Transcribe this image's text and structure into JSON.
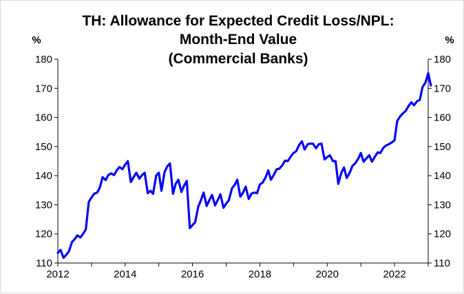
{
  "chart_data": {
    "type": "line",
    "title_lines": [
      "TH: Allowance for Expected Credit Loss/NPL:",
      "Month-End Value",
      "(Commercial Banks)"
    ],
    "ylabel_left": "%",
    "ylabel_right": "%",
    "ylim": [
      110,
      180
    ],
    "yticks": [
      110,
      120,
      130,
      140,
      150,
      160,
      170,
      180
    ],
    "xlim": [
      2012,
      2023.0
    ],
    "xticks": [
      2012,
      2014,
      2016,
      2018,
      2020,
      2022
    ],
    "grid": false,
    "legend": "none",
    "series": [
      {
        "color": "#0000ff",
        "points": [
          [
            2012.0,
            113.5
          ],
          [
            2012.08,
            114.5
          ],
          [
            2012.17,
            111.8
          ],
          [
            2012.25,
            112.8
          ],
          [
            2012.33,
            114.0
          ],
          [
            2012.42,
            117.2
          ],
          [
            2012.5,
            118.2
          ],
          [
            2012.58,
            119.5
          ],
          [
            2012.67,
            118.8
          ],
          [
            2012.75,
            120.0
          ],
          [
            2012.83,
            121.5
          ],
          [
            2012.92,
            131.0
          ],
          [
            2013.0,
            132.5
          ],
          [
            2013.08,
            133.8
          ],
          [
            2013.17,
            134.2
          ],
          [
            2013.25,
            136.0
          ],
          [
            2013.33,
            139.5
          ],
          [
            2013.42,
            138.5
          ],
          [
            2013.5,
            140.2
          ],
          [
            2013.58,
            140.8
          ],
          [
            2013.67,
            140.2
          ],
          [
            2013.75,
            141.8
          ],
          [
            2013.83,
            143.0
          ],
          [
            2013.92,
            142.2
          ],
          [
            2014.0,
            143.8
          ],
          [
            2014.08,
            145.0
          ],
          [
            2014.17,
            137.8
          ],
          [
            2014.25,
            139.5
          ],
          [
            2014.33,
            141.0
          ],
          [
            2014.42,
            139.0
          ],
          [
            2014.5,
            140.2
          ],
          [
            2014.58,
            141.0
          ],
          [
            2014.67,
            134.0
          ],
          [
            2014.75,
            134.8
          ],
          [
            2014.83,
            133.8
          ],
          [
            2014.92,
            140.0
          ],
          [
            2015.0,
            141.0
          ],
          [
            2015.08,
            134.8
          ],
          [
            2015.17,
            141.2
          ],
          [
            2015.25,
            143.2
          ],
          [
            2015.33,
            144.2
          ],
          [
            2015.42,
            133.8
          ],
          [
            2015.5,
            137.2
          ],
          [
            2015.58,
            138.6
          ],
          [
            2015.67,
            134.4
          ],
          [
            2015.75,
            136.6
          ],
          [
            2015.83,
            138.2
          ],
          [
            2015.92,
            122.0
          ],
          [
            2016.0,
            123.0
          ],
          [
            2016.08,
            124.0
          ],
          [
            2016.17,
            129.4
          ],
          [
            2016.25,
            131.6
          ],
          [
            2016.33,
            134.2
          ],
          [
            2016.42,
            129.6
          ],
          [
            2016.5,
            131.6
          ],
          [
            2016.58,
            133.4
          ],
          [
            2016.67,
            129.8
          ],
          [
            2016.75,
            131.6
          ],
          [
            2016.83,
            133.6
          ],
          [
            2016.92,
            129.0
          ],
          [
            2017.0,
            130.4
          ],
          [
            2017.08,
            131.6
          ],
          [
            2017.17,
            135.6
          ],
          [
            2017.25,
            136.8
          ],
          [
            2017.33,
            138.6
          ],
          [
            2017.42,
            132.8
          ],
          [
            2017.5,
            134.2
          ],
          [
            2017.58,
            136.2
          ],
          [
            2017.67,
            132.0
          ],
          [
            2017.75,
            133.8
          ],
          [
            2017.83,
            134.2
          ],
          [
            2017.92,
            134.0
          ],
          [
            2018.0,
            137.0
          ],
          [
            2018.08,
            137.6
          ],
          [
            2018.17,
            139.4
          ],
          [
            2018.25,
            141.8
          ],
          [
            2018.33,
            138.6
          ],
          [
            2018.42,
            140.4
          ],
          [
            2018.5,
            142.2
          ],
          [
            2018.58,
            142.4
          ],
          [
            2018.67,
            143.6
          ],
          [
            2018.75,
            145.2
          ],
          [
            2018.83,
            145.0
          ],
          [
            2018.92,
            146.6
          ],
          [
            2019.0,
            147.8
          ],
          [
            2019.08,
            148.4
          ],
          [
            2019.17,
            150.6
          ],
          [
            2019.25,
            151.8
          ],
          [
            2019.33,
            149.0
          ],
          [
            2019.42,
            150.8
          ],
          [
            2019.5,
            151.0
          ],
          [
            2019.58,
            151.0
          ],
          [
            2019.67,
            149.4
          ],
          [
            2019.75,
            150.8
          ],
          [
            2019.83,
            151.0
          ],
          [
            2019.92,
            145.6
          ],
          [
            2020.0,
            146.4
          ],
          [
            2020.08,
            147.0
          ],
          [
            2020.17,
            145.0
          ],
          [
            2020.25,
            145.0
          ],
          [
            2020.33,
            137.2
          ],
          [
            2020.42,
            141.0
          ],
          [
            2020.5,
            142.8
          ],
          [
            2020.58,
            139.2
          ],
          [
            2020.67,
            141.0
          ],
          [
            2020.75,
            143.4
          ],
          [
            2020.83,
            144.2
          ],
          [
            2020.92,
            145.8
          ],
          [
            2021.0,
            147.8
          ],
          [
            2021.08,
            144.8
          ],
          [
            2021.17,
            146.0
          ],
          [
            2021.25,
            147.0
          ],
          [
            2021.33,
            144.8
          ],
          [
            2021.42,
            146.6
          ],
          [
            2021.5,
            148.0
          ],
          [
            2021.58,
            147.8
          ],
          [
            2021.67,
            149.6
          ],
          [
            2021.75,
            150.4
          ],
          [
            2021.83,
            150.8
          ],
          [
            2021.92,
            151.4
          ],
          [
            2022.0,
            152.2
          ],
          [
            2022.08,
            158.8
          ],
          [
            2022.17,
            160.4
          ],
          [
            2022.25,
            161.4
          ],
          [
            2022.33,
            162.2
          ],
          [
            2022.42,
            164.0
          ],
          [
            2022.5,
            165.2
          ],
          [
            2022.58,
            164.2
          ],
          [
            2022.67,
            165.6
          ],
          [
            2022.75,
            166.0
          ],
          [
            2022.83,
            170.4
          ],
          [
            2022.92,
            172.0
          ],
          [
            2023.0,
            175.2
          ],
          [
            2023.08,
            171.0
          ]
        ]
      }
    ]
  }
}
